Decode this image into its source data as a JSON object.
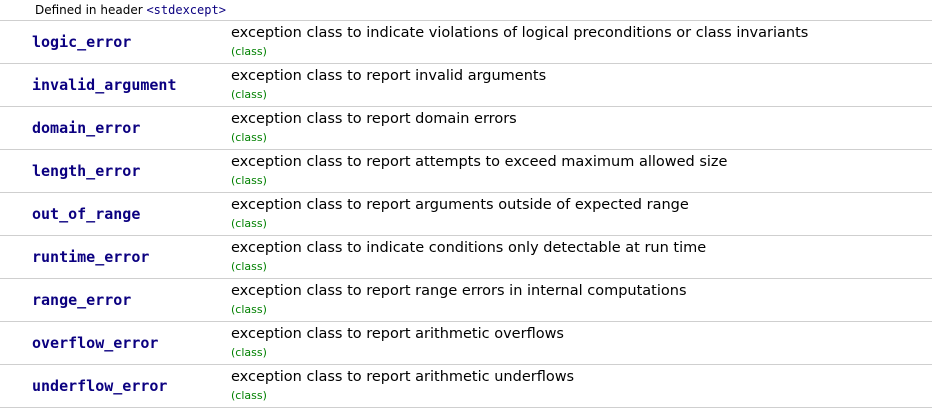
{
  "header": {
    "prefix": "Defined in header ",
    "link": "<stdexcept>"
  },
  "rows": [
    {
      "name": "logic_error",
      "desc": "exception class to indicate violations of logical preconditions or class invariants",
      "kind": "(class)"
    },
    {
      "name": "invalid_argument",
      "desc": "exception class to report invalid arguments",
      "kind": "(class)"
    },
    {
      "name": "domain_error",
      "desc": "exception class to report domain errors",
      "kind": "(class)"
    },
    {
      "name": "length_error",
      "desc": "exception class to report attempts to exceed maximum allowed size",
      "kind": "(class)"
    },
    {
      "name": "out_of_range",
      "desc": "exception class to report arguments outside of expected range",
      "kind": "(class)"
    },
    {
      "name": "runtime_error",
      "desc": "exception class to indicate conditions only detectable at run time",
      "kind": "(class)"
    },
    {
      "name": "range_error",
      "desc": "exception class to report range errors in internal computations",
      "kind": "(class)"
    },
    {
      "name": "overflow_error",
      "desc": "exception class to report arithmetic overflows",
      "kind": "(class)"
    },
    {
      "name": "underflow_error",
      "desc": "exception class to report arithmetic underflows",
      "kind": "(class)"
    }
  ],
  "colors": {
    "link": "#0b0080",
    "kind": "#008000",
    "divider": "#cfcfcf"
  }
}
